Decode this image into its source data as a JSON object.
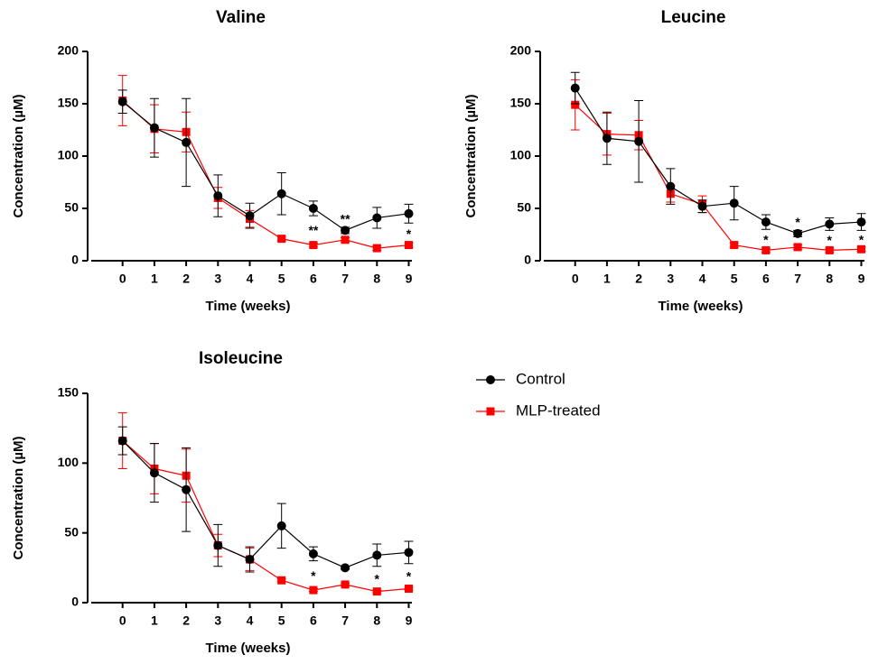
{
  "chart_data": [
    {
      "type": "line",
      "title": "Valine",
      "xlabel": "Time (weeks)",
      "ylabel": "Concentration (µM)",
      "x": [
        0,
        1,
        2,
        3,
        4,
        5,
        6,
        7,
        8,
        9
      ],
      "xlim": [
        -1.1,
        9.1
      ],
      "xticks": [
        0,
        1,
        2,
        3,
        4,
        5,
        6,
        7,
        8,
        9
      ],
      "ylim": [
        0,
        200
      ],
      "yticks": [
        0,
        50,
        100,
        150,
        200
      ],
      "series": [
        {
          "name": "Control",
          "color": "#000000",
          "marker": "circle",
          "values": [
            152,
            127,
            113,
            62,
            43,
            64,
            50,
            29,
            41,
            45
          ],
          "errors": [
            11,
            28,
            42,
            20,
            12,
            20,
            7,
            3,
            10,
            9
          ]
        },
        {
          "name": "MLP-treated",
          "color": "#ff0000",
          "marker": "square",
          "values": [
            153,
            126,
            123,
            60,
            40,
            21,
            15,
            20,
            12,
            15
          ],
          "errors": [
            24,
            23,
            19,
            10,
            8,
            2,
            2,
            2,
            2,
            2
          ]
        }
      ],
      "annotations": [
        {
          "x": 6,
          "text": "**"
        },
        {
          "x": 7,
          "text": "**"
        },
        {
          "x": 9,
          "text": "*"
        }
      ]
    },
    {
      "type": "line",
      "title": "Leucine",
      "xlabel": "Time (weeks)",
      "ylabel": "Concentration (µM)",
      "x": [
        0,
        1,
        2,
        3,
        4,
        5,
        6,
        7,
        8,
        9
      ],
      "xlim": [
        -1.1,
        9.1
      ],
      "xticks": [
        0,
        1,
        2,
        3,
        4,
        5,
        6,
        7,
        8,
        9
      ],
      "ylim": [
        0,
        200
      ],
      "yticks": [
        0,
        50,
        100,
        150,
        200
      ],
      "series": [
        {
          "name": "Control",
          "color": "#000000",
          "marker": "circle",
          "values": [
            165,
            117,
            114,
            71,
            52,
            55,
            37,
            26,
            35,
            37
          ],
          "errors": [
            15,
            25,
            39,
            17,
            6,
            16,
            7,
            3,
            6,
            8
          ]
        },
        {
          "name": "MLP-treated",
          "color": "#ff0000",
          "marker": "square",
          "values": [
            149,
            121,
            120,
            64,
            54,
            15,
            10,
            13,
            10,
            11
          ],
          "errors": [
            24,
            20,
            14,
            8,
            8,
            2,
            2,
            2,
            2,
            2
          ]
        }
      ],
      "annotations": [
        {
          "x": 6,
          "text": "*"
        },
        {
          "x": 7,
          "text": "*"
        },
        {
          "x": 8,
          "text": "*"
        },
        {
          "x": 9,
          "text": "*"
        }
      ]
    },
    {
      "type": "line",
      "title": "Isoleucine",
      "xlabel": "Time (weeks)",
      "ylabel": "Concentration (µM)",
      "x": [
        0,
        1,
        2,
        3,
        4,
        5,
        6,
        7,
        8,
        9
      ],
      "xlim": [
        -1.1,
        9.1
      ],
      "xticks": [
        0,
        1,
        2,
        3,
        4,
        5,
        6,
        7,
        8,
        9
      ],
      "ylim": [
        0,
        150
      ],
      "yticks": [
        0,
        50,
        100,
        150
      ],
      "series": [
        {
          "name": "Control",
          "color": "#000000",
          "marker": "circle",
          "values": [
            116,
            93,
            81,
            41,
            31,
            55,
            35,
            25,
            34,
            36
          ],
          "errors": [
            10,
            21,
            30,
            15,
            9,
            16,
            5,
            1,
            8,
            8
          ]
        },
        {
          "name": "MLP-treated",
          "color": "#ff0000",
          "marker": "square",
          "values": [
            116,
            96,
            91,
            41,
            31,
            16,
            9,
            13,
            8,
            10
          ],
          "errors": [
            20,
            18,
            19,
            8,
            8,
            1,
            1,
            1,
            1,
            1
          ]
        }
      ],
      "annotations": [
        {
          "x": 6,
          "text": "*"
        },
        {
          "x": 8,
          "text": "*"
        },
        {
          "x": 9,
          "text": "*"
        }
      ]
    }
  ]
}
